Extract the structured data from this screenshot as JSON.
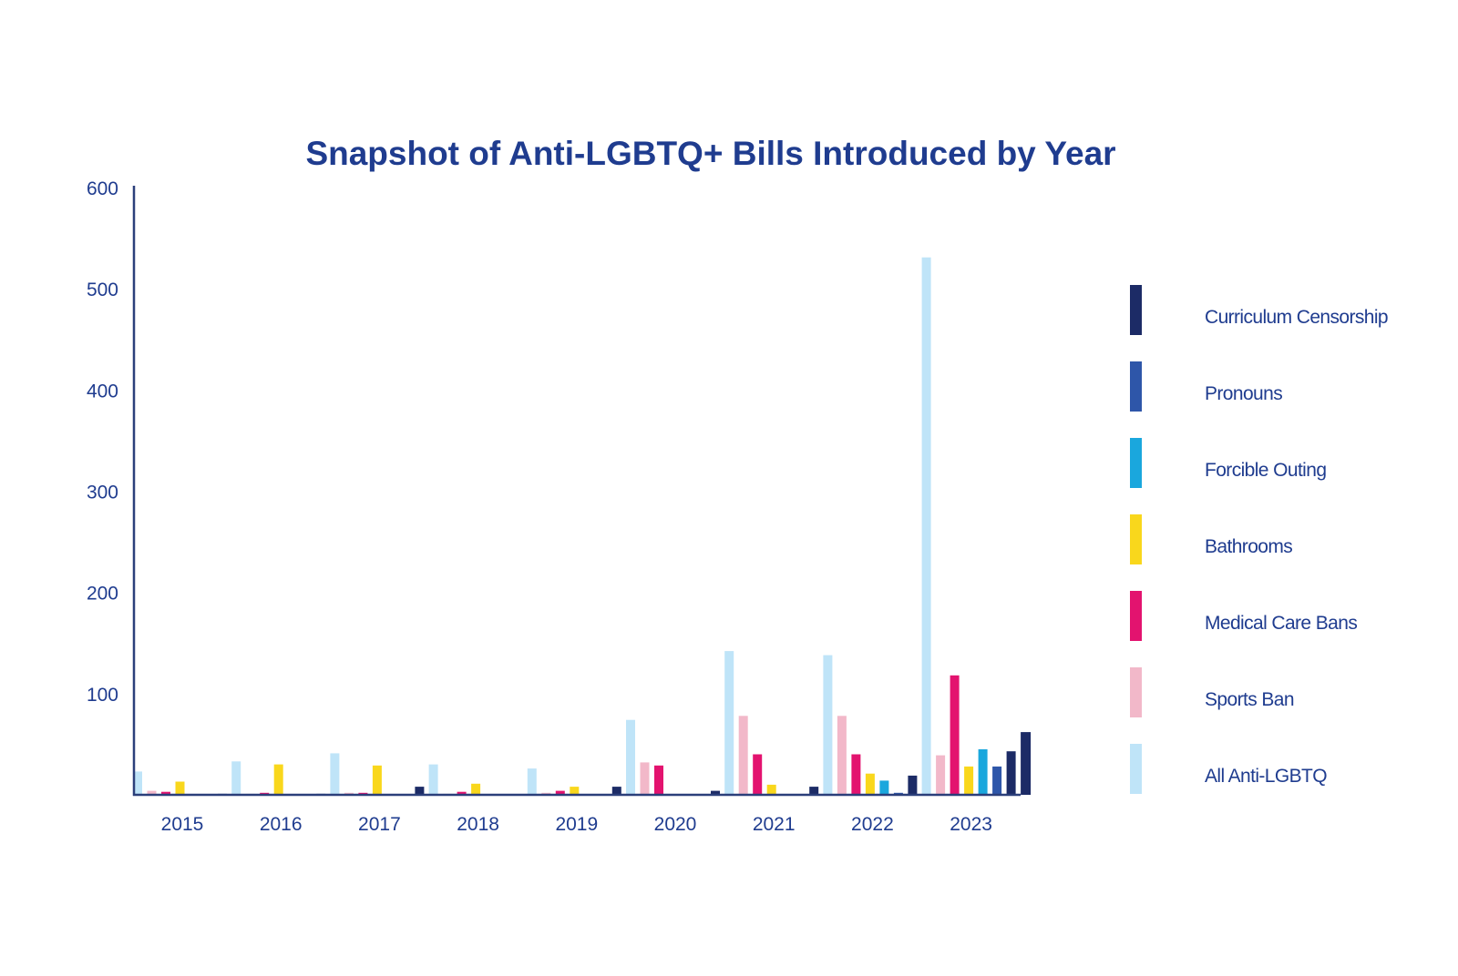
{
  "colors": {
    "text": "#1f3c8f",
    "axis": "#2b3f7a",
    "background": "#ffffff"
  },
  "chart_data": {
    "type": "bar",
    "title": "Snapshot of Anti-LGBTQ+ Bills Introduced by Year",
    "xlabel": "",
    "ylabel": "",
    "ylim": [
      0,
      600
    ],
    "yticks": [
      100,
      200,
      300,
      400,
      500,
      600
    ],
    "grid": false,
    "legend_position": "right",
    "categories": [
      "2015",
      "2016",
      "2017",
      "2018",
      "2019",
      "2020",
      "2021",
      "2022",
      "2023"
    ],
    "series": [
      {
        "name": "All Anti-LGBTQ",
        "color": "#bfe4f8",
        "values": [
          23,
          33,
          41,
          30,
          26,
          74,
          142,
          138,
          531
        ]
      },
      {
        "name": "Sports Ban",
        "color": "#f2b8c9",
        "values": [
          4,
          1,
          2,
          1,
          2,
          32,
          78,
          78,
          39
        ]
      },
      {
        "name": "Medical Care Bans",
        "color": "#e3136f",
        "values": [
          3,
          2,
          2,
          3,
          4,
          29,
          40,
          40,
          118
        ]
      },
      {
        "name": "Bathrooms",
        "color": "#f9d71c",
        "values": [
          13,
          30,
          29,
          11,
          8,
          0,
          10,
          21,
          28
        ]
      },
      {
        "name": "Forcible Outing",
        "color": "#1aa7dd",
        "values": [
          0,
          0,
          0,
          0,
          0,
          0,
          0,
          14,
          45
        ]
      },
      {
        "name": "Pronouns",
        "color": "#2e56a9",
        "values": [
          0,
          0,
          0,
          0,
          0,
          0,
          0,
          2,
          28
        ]
      },
      {
        "name": "Curriculum Censorship",
        "color": "#1c2b66",
        "values": [
          1,
          1,
          8,
          0,
          8,
          4,
          8,
          19,
          43
        ]
      }
    ],
    "trailing_bar": {
      "series": "Curriculum Censorship",
      "value": 62
    }
  }
}
